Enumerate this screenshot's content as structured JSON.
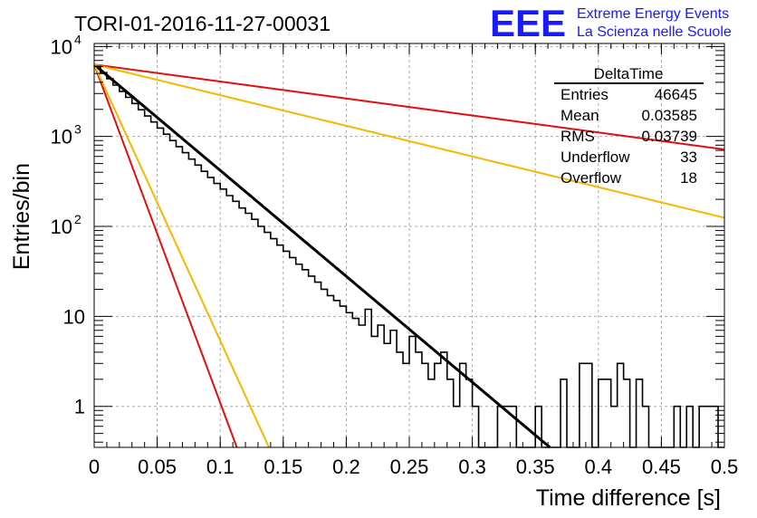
{
  "header": {
    "run_title": "TORI-01-2016-11-27-00031",
    "logo_letters": "EEE",
    "logo_line1": "Extreme Energy Events",
    "logo_line2": "La Scienza nelle Scuole",
    "logo_color": "#1a1aff"
  },
  "stats_box": {
    "title": "DeltaTime",
    "rows": [
      {
        "label": "Entries",
        "value": "46645"
      },
      {
        "label": "Mean",
        "value": "0.03585"
      },
      {
        "label": "RMS",
        "value": "0.03739"
      },
      {
        "label": "Underflow",
        "value": "33"
      },
      {
        "label": "Overflow",
        "value": "18"
      }
    ]
  },
  "chart_data": {
    "type": "line",
    "xlabel": "Time difference [s]",
    "ylabel": "Entries/bin",
    "xlim": [
      0,
      0.5
    ],
    "ylim": [
      0.35,
      10800
    ],
    "yscale": "log",
    "grid": true,
    "x_ticks": [
      {
        "value": 0,
        "label": "0"
      },
      {
        "value": 0.05,
        "label": "0.05"
      },
      {
        "value": 0.1,
        "label": "0.1"
      },
      {
        "value": 0.15,
        "label": "0.15"
      },
      {
        "value": 0.2,
        "label": "0.2"
      },
      {
        "value": 0.25,
        "label": "0.25"
      },
      {
        "value": 0.3,
        "label": "0.3"
      },
      {
        "value": 0.35,
        "label": "0.35"
      },
      {
        "value": 0.4,
        "label": "0.4"
      },
      {
        "value": 0.45,
        "label": "0.45"
      },
      {
        "value": 0.5,
        "label": "0.5"
      }
    ],
    "y_ticks": [
      {
        "value": 1,
        "label": "1",
        "exp": ""
      },
      {
        "value": 10,
        "label": "10",
        "exp": ""
      },
      {
        "value": 100,
        "label": "10",
        "exp": "2"
      },
      {
        "value": 1000,
        "label": "10",
        "exp": "3"
      },
      {
        "value": 10000,
        "label": "10",
        "exp": "4"
      }
    ],
    "histogram": {
      "color": "#000000",
      "bin_width": 0.005,
      "counts": [
        6000,
        5130,
        4380,
        3720,
        3170,
        2720,
        2320,
        1980,
        1690,
        1450,
        1240,
        1060,
        900,
        770,
        660,
        560,
        480,
        410,
        350,
        300,
        260,
        220,
        190,
        160,
        140,
        120,
        100,
        86,
        73,
        62,
        53,
        45,
        38,
        33,
        28,
        24,
        20,
        17,
        15,
        13,
        11,
        9.5,
        8,
        12,
        6,
        8,
        5,
        7,
        4,
        3,
        6,
        4,
        3,
        2,
        3,
        4,
        2,
        1,
        3,
        2,
        1,
        0,
        0,
        0,
        1,
        1,
        1,
        0,
        0,
        0,
        1,
        0,
        0,
        0,
        2,
        0,
        0,
        3,
        3,
        0,
        2,
        2,
        1,
        3,
        2,
        0,
        2,
        1,
        0,
        0,
        0,
        0,
        1,
        0,
        1,
        0,
        1,
        1,
        1,
        0
      ]
    },
    "series": [
      {
        "color": "#000000",
        "y0": 6300,
        "tau": 0.0369,
        "x_start": 0,
        "x_end": 0.5
      },
      {
        "color": "#e01010",
        "y0": 6300,
        "tau": 0.01155,
        "x_start": 0,
        "x_end": 0.5
      },
      {
        "color": "#f5b800",
        "y0": 6300,
        "tau": 0.01415,
        "x_start": 0,
        "x_end": 0.5
      },
      {
        "color": "#e01010",
        "y0": 6300,
        "tau": 0.23,
        "x_start": 0,
        "x_end": 0.5
      },
      {
        "color": "#f5b800",
        "y0": 6300,
        "tau": 0.1275,
        "x_start": 0,
        "x_end": 0.5
      }
    ]
  }
}
